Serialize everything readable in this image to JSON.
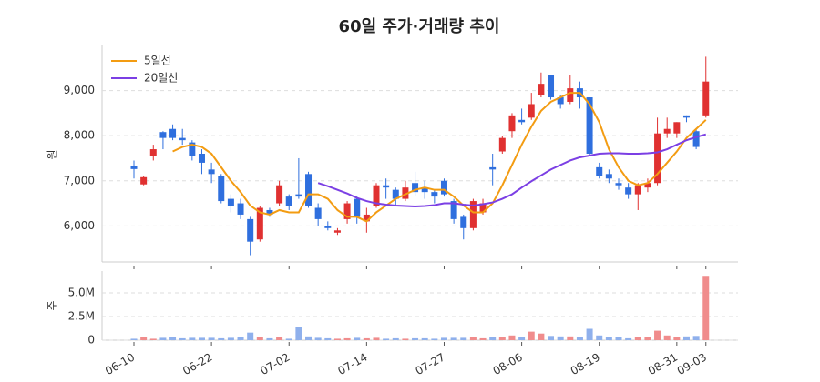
{
  "chart_data": [
    {
      "type": "candlestick",
      "title": "60일 주가·거래량 추이",
      "y_label": "원",
      "up_color": "#e03131",
      "down_color": "#2f6fde",
      "open": [
        7320,
        6920,
        7550,
        8080,
        8150,
        7950,
        7850,
        7600,
        7250,
        7100,
        6600,
        6500,
        6150,
        5700,
        6350,
        6500,
        6650,
        6700,
        7150,
        6400,
        6000,
        5850,
        6150,
        6600,
        6100,
        6450,
        6900,
        6800,
        6600,
        6950,
        6850,
        6750,
        7000,
        6550,
        6200,
        5950,
        6300,
        7300,
        7650,
        8100,
        8350,
        8400,
        8900,
        9350,
        8850,
        8750,
        9050,
        8850,
        7300,
        7150,
        6950,
        6850,
        6700,
        6850,
        6950,
        8050,
        8050,
        8450,
        8100,
        8450
      ],
      "high": [
        7450,
        7100,
        7800,
        8100,
        8250,
        8150,
        7900,
        7700,
        7400,
        7150,
        6700,
        6600,
        6200,
        6450,
        6400,
        7000,
        6700,
        7500,
        7200,
        6500,
        6100,
        5950,
        6550,
        6650,
        6400,
        6950,
        7050,
        6850,
        7000,
        7200,
        7000,
        6800,
        7050,
        6600,
        6250,
        6600,
        6600,
        7600,
        8000,
        8500,
        8600,
        8950,
        9400,
        9350,
        8900,
        9350,
        9200,
        8850,
        7400,
        7250,
        7050,
        6950,
        6950,
        7050,
        8400,
        8400,
        8300,
        8450,
        8150,
        9750
      ],
      "low": [
        7050,
        6900,
        7450,
        7700,
        7900,
        7800,
        7450,
        7150,
        6950,
        6500,
        6300,
        6150,
        5350,
        5650,
        6200,
        6450,
        6350,
        6600,
        6400,
        6000,
        5900,
        5800,
        6050,
        6050,
        5850,
        6400,
        6600,
        6450,
        6550,
        6650,
        6600,
        6500,
        6650,
        6050,
        5700,
        5900,
        6250,
        6900,
        7600,
        7950,
        8250,
        8350,
        8850,
        8800,
        8600,
        8700,
        8600,
        7550,
        7050,
        6950,
        6800,
        6600,
        6350,
        6750,
        6900,
        7950,
        7950,
        8300,
        7700,
        8400
      ],
      "close": [
        7260,
        7080,
        7700,
        7950,
        7950,
        7900,
        7550,
        7400,
        7150,
        6550,
        6450,
        6250,
        5650,
        6400,
        6250,
        6900,
        6450,
        6650,
        6450,
        6150,
        5950,
        5900,
        6500,
        6200,
        6250,
        6900,
        6850,
        6600,
        6850,
        6750,
        6750,
        6650,
        6700,
        6150,
        5950,
        6550,
        6500,
        7250,
        7950,
        8450,
        8300,
        8700,
        9150,
        8850,
        8700,
        9050,
        8850,
        7600,
        7100,
        7050,
        6900,
        6700,
        6900,
        6950,
        8050,
        8150,
        8300,
        8400,
        7750,
        9200
      ],
      "series": [
        {
          "name": "5일선",
          "color": "#f39c12",
          "values": [
            null,
            null,
            null,
            null,
            7650,
            7750,
            7800,
            7750,
            7600,
            7300,
            7000,
            6750,
            6450,
            6300,
            6250,
            6350,
            6300,
            6300,
            6700,
            6700,
            6600,
            6350,
            6200,
            6200,
            6100,
            6300,
            6450,
            6600,
            6700,
            6800,
            6850,
            6800,
            6800,
            6650,
            6450,
            6300,
            6300,
            6500,
            6900,
            7350,
            7800,
            8200,
            8550,
            8750,
            8850,
            8950,
            8950,
            8700,
            8300,
            7700,
            7300,
            7000,
            6900,
            6950,
            7150,
            7400,
            7650,
            7950,
            8150,
            8350
          ]
        },
        {
          "name": "20일선",
          "color": "#7b3fe4",
          "values": [
            null,
            null,
            null,
            null,
            null,
            null,
            null,
            null,
            null,
            null,
            null,
            null,
            null,
            null,
            null,
            null,
            null,
            null,
            null,
            6950,
            6880,
            6800,
            6720,
            6620,
            6550,
            6500,
            6470,
            6450,
            6440,
            6430,
            6440,
            6460,
            6500,
            6500,
            6470,
            6450,
            6480,
            6520,
            6600,
            6700,
            6850,
            6990,
            7120,
            7250,
            7350,
            7450,
            7520,
            7560,
            7600,
            7610,
            7610,
            7600,
            7600,
            7610,
            7630,
            7700,
            7800,
            7900,
            7970,
            8030
          ]
        }
      ],
      "legend": "upper-left",
      "grid": true,
      "ylim": [
        5200,
        10000
      ],
      "yticks": [
        {
          "value": 6000,
          "label": "6,000"
        },
        {
          "value": 7000,
          "label": "7,000"
        },
        {
          "value": 8000,
          "label": "8,000"
        },
        {
          "value": 9000,
          "label": "9,000"
        }
      ]
    },
    {
      "type": "bar",
      "y_label": "주",
      "up_color": "#f08c8c",
      "down_color": "#8fb0ec",
      "grid": true,
      "categories": [
        "06-10",
        null,
        null,
        null,
        null,
        null,
        null,
        null,
        "06-22",
        null,
        null,
        null,
        null,
        null,
        null,
        null,
        "07-02",
        null,
        null,
        null,
        null,
        null,
        null,
        null,
        "07-14",
        null,
        null,
        null,
        null,
        null,
        null,
        null,
        "07-27",
        null,
        null,
        null,
        null,
        null,
        null,
        null,
        "08-06",
        null,
        null,
        null,
        null,
        null,
        null,
        null,
        "08-19",
        null,
        null,
        null,
        null,
        null,
        null,
        null,
        "08-31",
        null,
        null,
        "09-03"
      ],
      "values": [
        150000,
        300000,
        150000,
        250000,
        300000,
        200000,
        250000,
        250000,
        250000,
        200000,
        250000,
        300000,
        800000,
        300000,
        200000,
        300000,
        150000,
        1400000,
        400000,
        250000,
        200000,
        150000,
        200000,
        250000,
        200000,
        250000,
        150000,
        200000,
        150000,
        200000,
        200000,
        150000,
        250000,
        250000,
        250000,
        300000,
        200000,
        350000,
        300000,
        500000,
        350000,
        900000,
        700000,
        450000,
        400000,
        400000,
        300000,
        1200000,
        500000,
        350000,
        300000,
        200000,
        300000,
        300000,
        1000000,
        500000,
        350000,
        400000,
        450000,
        6700000
      ],
      "ylim": [
        0,
        7300000
      ],
      "yticks": [
        0,
        {
          "value": 2500000,
          "label": "2.5M"
        },
        {
          "value": 5000000,
          "label": "5.0M"
        }
      ]
    }
  ]
}
